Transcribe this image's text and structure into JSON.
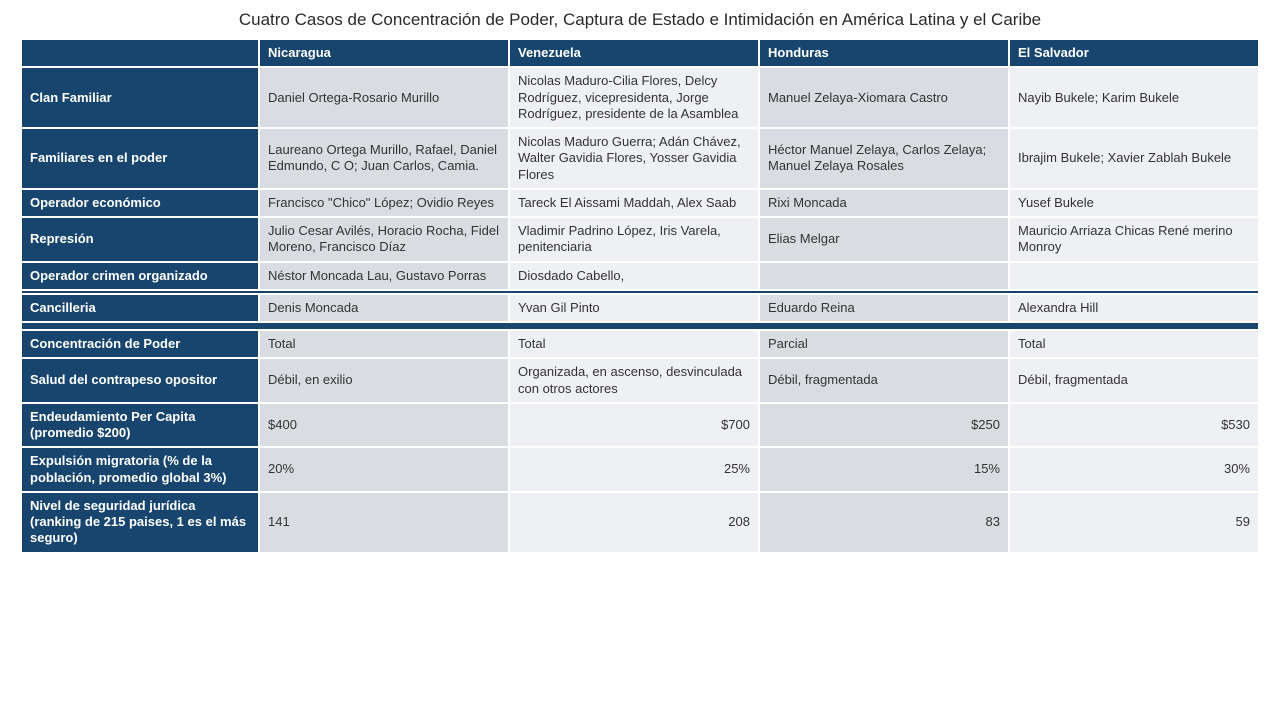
{
  "title": "Cuatro Casos de Concentración de Poder, Captura de Estado e Intimidación en América Latina y el Caribe",
  "countries": [
    "Nicaragua",
    "Venezuela",
    "Honduras",
    "El Salvador"
  ],
  "row_labels": {
    "clan": "Clan Familiar",
    "familiares": "Familiares en el poder",
    "operador_econ": "Operador económico",
    "represion": "Represión",
    "crimen": "Operador crimen organizado",
    "cancilleria": "Cancilleria",
    "concentracion": "Concentración de Poder",
    "salud": "Salud del contrapeso opositor",
    "endeudamiento": "Endeudamiento Per Capita (promedio $200)",
    "expulsion": "Expulsión migratoria (% de la población, promedio global 3%)",
    "seguridad": "Nivel de seguridad jurídica (ranking de 215 paises, 1 es el más seguro)"
  },
  "rows": {
    "clan": [
      "Daniel Ortega-Rosario Murillo",
      "Nicolas Maduro-Cilia Flores, Delcy Rodríguez, vicepresidenta, Jorge Rodríguez, presidente de la Asamblea",
      "Manuel Zelaya-Xiomara Castro",
      "Nayib Bukele; Karim Bukele"
    ],
    "familiares": [
      "Laureano Ortega Murillo, Rafael, Daniel Edmundo, C O; Juan Carlos, Camia.",
      "Nicolas Maduro Guerra; Adán Chávez, Walter Gavidia Flores, Yosser Gavidia Flores",
      "Héctor Manuel Zelaya, Carlos Zelaya; Manuel Zelaya Rosales",
      "Ibrajim Bukele; Xavier Zablah Bukele"
    ],
    "operador_econ": [
      "Francisco \"Chico\" López; Ovidio Reyes",
      "Tareck El Aissami Maddah, Alex Saab",
      "Rixi Moncada",
      "Yusef Bukele"
    ],
    "represion": [
      "Julio Cesar Avilés, Horacio Rocha, Fidel Moreno, Francisco Díaz",
      "Vladimir Padrino López, Iris Varela, penitenciaria",
      "Elias Melgar",
      " Mauricio Arriaza Chicas René merino Monroy"
    ],
    "crimen": [
      "Néstor Moncada Lau, Gustavo Porras",
      "Diosdado Cabello,",
      "",
      ""
    ],
    "cancilleria": [
      "Denis Moncada",
      "Yvan Gil Pinto",
      "Eduardo Reina",
      "Alexandra Hill"
    ],
    "concentracion": [
      "Total",
      "Total",
      "Parcial",
      "Total"
    ],
    "salud": [
      "Débil, en exilio",
      "Organizada, en ascenso, desvinculada con otros actores",
      "Débil, fragmentada",
      "Débil, fragmentada"
    ],
    "endeudamiento": [
      "$400",
      "$700",
      "$250",
      "$530"
    ],
    "expulsion": [
      "20%",
      "25%",
      "15%",
      "30%"
    ],
    "seguridad": [
      "141",
      "208",
      "83",
      "59"
    ]
  },
  "colors": {
    "header_bg": "#17456e",
    "cell_light": "#d9dde2",
    "cell_lighter": "#eef0f3",
    "text_light": "#ffffff",
    "text_dark": "#333333"
  }
}
